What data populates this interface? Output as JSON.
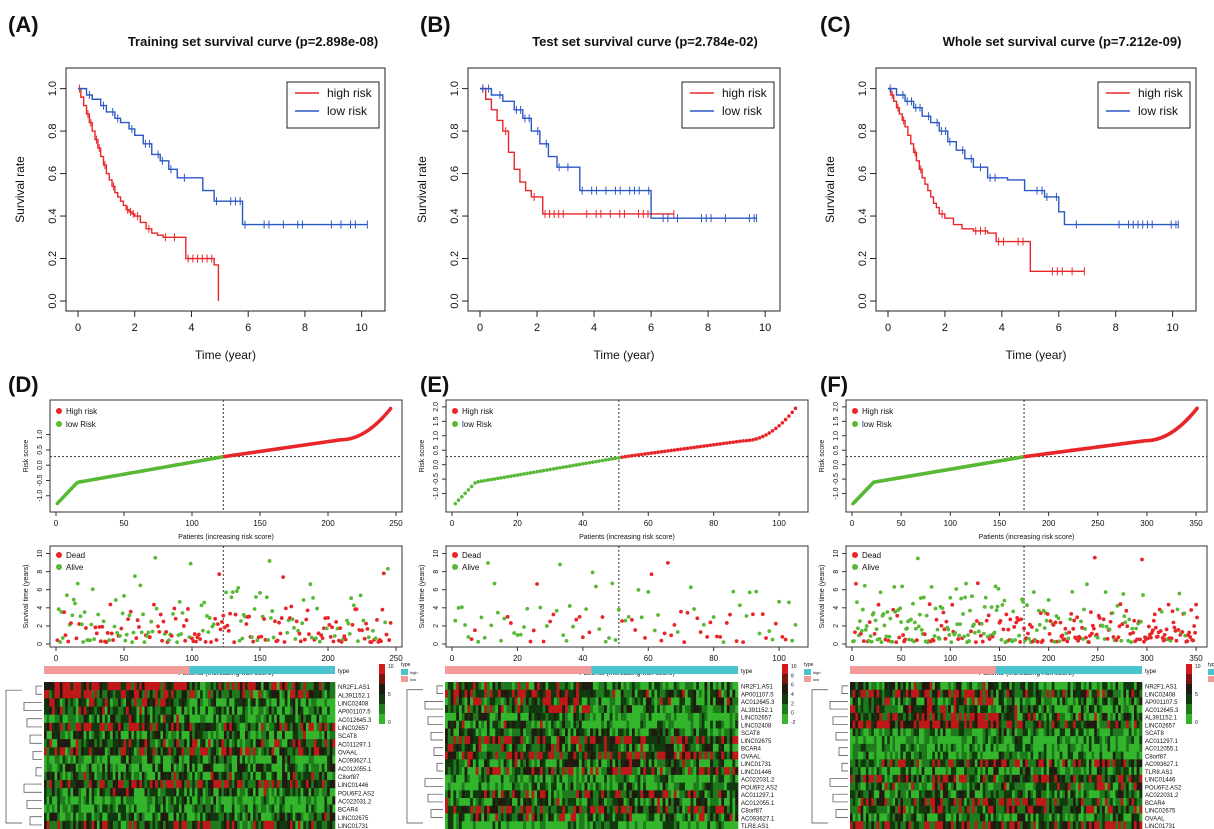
{
  "panel_letters": [
    "(A)",
    "(B)",
    "(C)",
    "(D)",
    "(E)",
    "(F)"
  ],
  "colors": {
    "high": "#e8262a",
    "low": "#2b58c4",
    "risk_high": "#e8262a",
    "risk_low": "#58b936",
    "dead": "#e8262a",
    "alive": "#58b936",
    "bar_high": "#f29b9b",
    "bar_low": "#49c3ce"
  },
  "chart_data": [
    {
      "type": "line",
      "panel": "A",
      "title": "Training set survival curve (p=2.898e-08)",
      "xlabel": "Time (year)",
      "ylabel": "Survival rate",
      "xlim": [
        0,
        10.4
      ],
      "ylim": [
        0,
        1.05
      ],
      "xticks": [
        "0",
        "2",
        "4",
        "6",
        "8",
        "10"
      ],
      "yticks": [
        "0.0",
        "0.2",
        "0.4",
        "0.6",
        "0.8",
        "1.0"
      ],
      "legend": {
        "position": "top-right",
        "entries": [
          "high risk",
          "low risk"
        ]
      },
      "series": [
        {
          "name": "high risk",
          "x": [
            0,
            0.1,
            0.2,
            0.3,
            0.4,
            0.5,
            0.6,
            0.7,
            0.8,
            0.9,
            1.0,
            1.1,
            1.2,
            1.3,
            1.4,
            1.5,
            1.6,
            1.7,
            1.8,
            1.9,
            2.0,
            2.2,
            2.4,
            2.6,
            2.8,
            3.0,
            3.8,
            4.8,
            4.95
          ],
          "y": [
            1.0,
            0.96,
            0.92,
            0.88,
            0.84,
            0.8,
            0.76,
            0.72,
            0.68,
            0.64,
            0.6,
            0.57,
            0.54,
            0.51,
            0.49,
            0.47,
            0.45,
            0.43,
            0.42,
            0.41,
            0.4,
            0.37,
            0.34,
            0.32,
            0.31,
            0.3,
            0.2,
            0.17,
            0.0
          ]
        },
        {
          "name": "low risk",
          "x": [
            0,
            0.3,
            0.5,
            0.8,
            1.0,
            1.3,
            1.5,
            1.8,
            2.0,
            2.3,
            2.6,
            2.9,
            3.2,
            3.5,
            4.0,
            4.4,
            4.8,
            5.8,
            10.2
          ],
          "y": [
            1.0,
            0.97,
            0.95,
            0.92,
            0.89,
            0.86,
            0.84,
            0.81,
            0.78,
            0.74,
            0.69,
            0.66,
            0.62,
            0.58,
            0.58,
            0.52,
            0.47,
            0.36,
            0.36
          ]
        }
      ]
    },
    {
      "type": "line",
      "panel": "B",
      "title": "Test set survival curve (p=2.784e-02)",
      "xlabel": "Time (year)",
      "ylabel": "Survival rate",
      "xlim": [
        0,
        10.1
      ],
      "ylim": [
        0,
        1.05
      ],
      "xticks": [
        "0",
        "2",
        "4",
        "6",
        "8",
        "10"
      ],
      "yticks": [
        "0.0",
        "0.2",
        "0.4",
        "0.6",
        "0.8",
        "1.0"
      ],
      "legend": {
        "position": "top-right",
        "entries": [
          "high risk",
          "low risk"
        ]
      },
      "series": [
        {
          "name": "high risk",
          "x": [
            0,
            0.2,
            0.4,
            0.6,
            0.8,
            1.0,
            1.2,
            1.4,
            1.6,
            1.8,
            2.0,
            2.2,
            3.0,
            6.8
          ],
          "y": [
            1.0,
            0.95,
            0.9,
            0.85,
            0.8,
            0.7,
            0.62,
            0.56,
            0.52,
            0.49,
            0.49,
            0.41,
            0.41,
            0.41
          ]
        },
        {
          "name": "low risk",
          "x": [
            0,
            0.4,
            0.8,
            1.2,
            1.5,
            1.8,
            2.1,
            2.4,
            2.7,
            3.0,
            3.5,
            4.5,
            6.0,
            9.7
          ],
          "y": [
            1.0,
            0.97,
            0.94,
            0.9,
            0.86,
            0.8,
            0.74,
            0.68,
            0.63,
            0.63,
            0.52,
            0.52,
            0.39,
            0.39
          ]
        }
      ]
    },
    {
      "type": "line",
      "panel": "C",
      "title": "Whole set survival curve (p=7.212e-09)",
      "xlabel": "Time (year)",
      "ylabel": "Survival rate",
      "xlim": [
        0,
        10.4
      ],
      "ylim": [
        0,
        1.05
      ],
      "xticks": [
        "0",
        "2",
        "4",
        "6",
        "8",
        "10"
      ],
      "yticks": [
        "0.0",
        "0.2",
        "0.4",
        "0.6",
        "0.8",
        "1.0"
      ],
      "legend": {
        "position": "top-right",
        "entries": [
          "high risk",
          "low risk"
        ]
      },
      "series": [
        {
          "name": "high risk",
          "x": [
            0,
            0.1,
            0.2,
            0.3,
            0.4,
            0.5,
            0.6,
            0.7,
            0.8,
            0.9,
            1.0,
            1.1,
            1.2,
            1.3,
            1.4,
            1.5,
            1.6,
            1.7,
            1.8,
            2.0,
            2.3,
            2.6,
            3.0,
            3.5,
            3.8,
            5.0,
            6.9
          ],
          "y": [
            1.0,
            0.97,
            0.94,
            0.91,
            0.88,
            0.85,
            0.82,
            0.78,
            0.74,
            0.7,
            0.66,
            0.62,
            0.58,
            0.55,
            0.52,
            0.49,
            0.46,
            0.44,
            0.41,
            0.39,
            0.36,
            0.34,
            0.33,
            0.32,
            0.28,
            0.14,
            0.14
          ]
        },
        {
          "name": "low risk",
          "x": [
            0,
            0.3,
            0.6,
            0.9,
            1.2,
            1.5,
            1.8,
            2.1,
            2.4,
            2.7,
            3.0,
            3.5,
            4.2,
            4.8,
            5.5,
            6.0,
            6.2,
            10.2
          ],
          "y": [
            1.0,
            0.97,
            0.94,
            0.91,
            0.87,
            0.84,
            0.8,
            0.75,
            0.71,
            0.67,
            0.63,
            0.58,
            0.57,
            0.52,
            0.49,
            0.42,
            0.36,
            0.36
          ]
        }
      ]
    },
    {
      "type": "scatter",
      "panel": "D",
      "subtype": "risk_score",
      "xlabel": "Patients (increasing risk score)",
      "ylabel": "Risk score",
      "n": 246,
      "cutoff": 123,
      "xlim": [
        0,
        250
      ],
      "ylim": [
        -1.4,
        2.0
      ],
      "xticks": [
        "0",
        "50",
        "100",
        "150",
        "200",
        "250"
      ],
      "yticks": [
        "-1.0",
        "-0.5",
        "0.0",
        "0.5",
        "1.0"
      ],
      "legend": {
        "position": "top-left",
        "entries": [
          "High risk",
          "low Risk"
        ]
      }
    },
    {
      "type": "scatter",
      "panel": "E",
      "subtype": "risk_score",
      "xlabel": "Patients (increasing risk score)",
      "ylabel": "Risk score",
      "n": 105,
      "cutoff": 51,
      "xlim": [
        0,
        107
      ],
      "ylim": [
        -1.5,
        2.1
      ],
      "xticks": [
        "0",
        "20",
        "40",
        "60",
        "80",
        "100"
      ],
      "yticks": [
        "-1.0",
        "-0.5",
        "0.0",
        "0.5",
        "1.0",
        "1.5",
        "2.0"
      ],
      "legend": {
        "position": "top-left",
        "entries": [
          "High risk",
          "low Risk"
        ]
      }
    },
    {
      "type": "scatter",
      "panel": "F",
      "subtype": "risk_score",
      "xlabel": "Patients (increasing risk score)",
      "ylabel": "Risk score",
      "n": 351,
      "cutoff": 175,
      "xlim": [
        0,
        355
      ],
      "ylim": [
        -1.5,
        2.1
      ],
      "xticks": [
        "0",
        "50",
        "100",
        "150",
        "200",
        "250",
        "300",
        "350"
      ],
      "yticks": [
        "-1.0",
        "-0.5",
        "0.0",
        "0.5",
        "1.0",
        "1.5",
        "2.0"
      ],
      "legend": {
        "position": "top-left",
        "entries": [
          "High risk",
          "low Risk"
        ]
      }
    },
    {
      "type": "scatter",
      "panel": "D",
      "subtype": "survival_time",
      "xlabel": "Patients (increasing risk score)",
      "ylabel": "Survival time (years)",
      "n": 246,
      "cutoff": 123,
      "xlim": [
        0,
        250
      ],
      "ylim": [
        0,
        10.5
      ],
      "xticks": [
        "0",
        "50",
        "100",
        "150",
        "200",
        "250"
      ],
      "yticks": [
        "0",
        "2",
        "4",
        "6",
        "8",
        "10"
      ],
      "legend": {
        "position": "top-left",
        "entries": [
          "Dead",
          "Alive"
        ]
      }
    },
    {
      "type": "scatter",
      "panel": "E",
      "subtype": "survival_time",
      "xlabel": "Patients (increasing risk score)",
      "ylabel": "Survival time (years)",
      "n": 105,
      "cutoff": 51,
      "xlim": [
        0,
        107
      ],
      "ylim": [
        0,
        10.5
      ],
      "xticks": [
        "0",
        "20",
        "40",
        "60",
        "80",
        "100"
      ],
      "yticks": [
        "0",
        "2",
        "4",
        "6",
        "8",
        "10"
      ],
      "legend": {
        "position": "top-left",
        "entries": [
          "Dead",
          "Alive"
        ]
      }
    },
    {
      "type": "scatter",
      "panel": "F",
      "subtype": "survival_time",
      "xlabel": "Patients (increasing risk score)",
      "ylabel": "Survival time (years)",
      "n": 351,
      "cutoff": 175,
      "xlim": [
        0,
        355
      ],
      "ylim": [
        0,
        10.5
      ],
      "xticks": [
        "0",
        "50",
        "100",
        "150",
        "200",
        "250",
        "300",
        "350"
      ],
      "yticks": [
        "0",
        "2",
        "4",
        "6",
        "8",
        "10"
      ],
      "legend": {
        "position": "top-left",
        "entries": [
          "Dead",
          "Alive"
        ]
      }
    },
    {
      "type": "heatmap",
      "panel": "D",
      "genes": [
        "NR2F1.AS1",
        "AL391152.1",
        "LINC02408",
        "AP001107.5",
        "AC012645.3",
        "LINC02657",
        "SCAT8",
        "AC011297.1",
        "OVAAL",
        "AC093627.1",
        "AC012055.1",
        "C8orf87",
        "LINC01446",
        "POU6F2.AS2",
        "AC022031.2",
        "BCAR4",
        "LINC02675",
        "LINC01731"
      ],
      "columns": 246,
      "annotation": {
        "label": "type",
        "levels": [
          "high",
          "low"
        ]
      },
      "colorbar": [
        "10",
        "5",
        "0"
      ]
    },
    {
      "type": "heatmap",
      "panel": "E",
      "genes": [
        "NR2F1.AS1",
        "AP001107.5",
        "AC012645.3",
        "AL391152.1",
        "LINC02657",
        "LINC02408",
        "SCAT8",
        "LINC02675",
        "BCAR4",
        "OVAAL",
        "LINC01731",
        "LINC01446",
        "AC022031.2",
        "POU6F2.AS2",
        "AC011297.1",
        "AC012055.1",
        "C8orf87",
        "AC093627.1",
        "TLR8.AS1"
      ],
      "columns": 105,
      "annotation": {
        "label": "type",
        "levels": [
          "high",
          "low"
        ]
      },
      "colorbar": [
        "10",
        "8",
        "6",
        "4",
        "2",
        "0",
        "-2"
      ]
    },
    {
      "type": "heatmap",
      "panel": "F",
      "genes": [
        "NR2F1.AS1",
        "LINC02408",
        "AP001107.5",
        "AC012645.3",
        "AL391152.1",
        "LINC02657",
        "SCAT8",
        "AC011297.1",
        "AC012055.1",
        "C8orf87",
        "AC093627.1",
        "TLR8.AS1",
        "LINC01446",
        "POU6F2.AS2",
        "AC022031.2",
        "BCAR4",
        "LINC02675",
        "OVAAL",
        "LINC01731"
      ],
      "columns": 351,
      "annotation": {
        "label": "type",
        "levels": [
          "high",
          "low"
        ]
      },
      "colorbar": [
        "10",
        "5",
        "0"
      ]
    }
  ]
}
